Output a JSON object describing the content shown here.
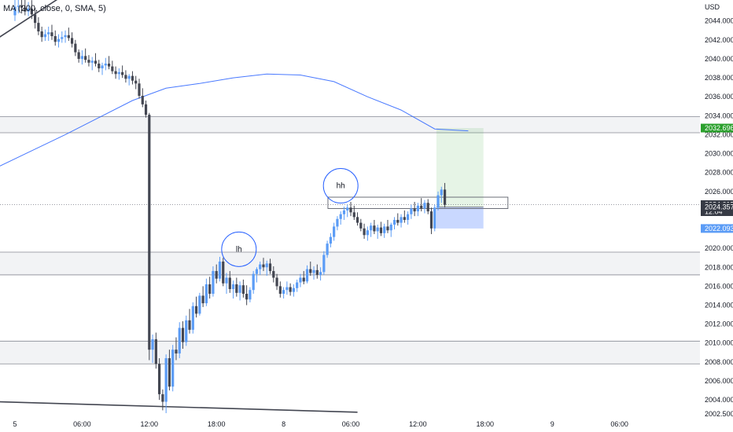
{
  "indicator": {
    "label": "MA (200, close, 0, SMA, 5)"
  },
  "currency": "USD",
  "chart_data": {
    "type": "candlestick",
    "y_range": [
      2002.4,
      2046.3
    ],
    "y_ticks": [
      "2044.000",
      "2042.000",
      "2040.000",
      "2038.000",
      "2036.000",
      "2034.000",
      "2032.000",
      "2030.000",
      "2028.000",
      "2026.000",
      "2024.000",
      "2022.000",
      "2020.000",
      "2018.000",
      "2016.000",
      "2014.000",
      "2012.000",
      "2010.000",
      "2008.000",
      "2006.000",
      "2004.000",
      "2002.500"
    ],
    "x_ticks": [
      "5",
      "06:00",
      "12:00",
      "18:00",
      "8",
      "06:00",
      "12:00",
      "18:00",
      "9",
      "06:00"
    ],
    "x_tick_slots": [
      0,
      20,
      40,
      60,
      80,
      100,
      120,
      140,
      160,
      180
    ],
    "price_tags": [
      {
        "name": "ma-value",
        "value": 2032.696,
        "label": "2032.696",
        "color": "#2ba02d",
        "text_color": "#ffffff"
      },
      {
        "name": "last-price",
        "value": 2024.615,
        "label": "2024.615",
        "sub_label": "12:04",
        "color": "#363a45",
        "text_color": "#ffffff"
      },
      {
        "name": "entry",
        "value": 2024.357,
        "label": "2024.357",
        "color": "#363a45",
        "text_color": "#ffffff"
      },
      {
        "name": "stop",
        "value": 2022.093,
        "label": "2022.093",
        "color": "#5b9cf6",
        "text_color": "#ffffff"
      }
    ],
    "zones": [
      {
        "top": 2033.9,
        "bottom": 2032.2
      },
      {
        "top": 2019.6,
        "bottom": 2017.2
      },
      {
        "top": 2010.2,
        "bottom": 2007.8
      }
    ],
    "position": {
      "entry": 2024.357,
      "target": 2032.696,
      "stop": 2022.093,
      "start_slot": 125.5,
      "end_slot": 139.5
    },
    "annotations": [
      {
        "text": "lh",
        "slot": 66.7,
        "price": 2019.9
      },
      {
        "text": "hh",
        "slot": 97,
        "price": 2026.6
      }
    ],
    "candles": [
      [
        2044.6,
        2046.3,
        2044.0,
        2045.5
      ],
      [
        2045.5,
        2046.3,
        2044.8,
        2045.6
      ],
      [
        2045.6,
        2046.3,
        2044.8,
        2045.4
      ],
      [
        2045.4,
        2046.3,
        2044.6,
        2045.0
      ],
      [
        2045.0,
        2046.0,
        2044.5,
        2045.3
      ],
      [
        2045.3,
        2046.2,
        2044.2,
        2044.7
      ],
      [
        2044.7,
        2045.4,
        2043.2,
        2043.8
      ],
      [
        2043.8,
        2044.4,
        2042.5,
        2042.9
      ],
      [
        2042.9,
        2043.4,
        2041.8,
        2042.3
      ],
      [
        2042.3,
        2043.1,
        2041.9,
        2042.6
      ],
      [
        2042.6,
        2043.4,
        2041.9,
        2042.8
      ],
      [
        2042.8,
        2043.6,
        2042.0,
        2042.4
      ],
      [
        2042.4,
        2043.0,
        2041.4,
        2041.8
      ],
      [
        2041.8,
        2042.6,
        2041.2,
        2042.1
      ],
      [
        2042.1,
        2042.9,
        2041.7,
        2042.3
      ],
      [
        2042.3,
        2043.0,
        2041.7,
        2042.5
      ],
      [
        2042.5,
        2043.3,
        2041.9,
        2042.2
      ],
      [
        2042.2,
        2042.8,
        2041.2,
        2041.6
      ],
      [
        2041.6,
        2042.0,
        2040.3,
        2040.7
      ],
      [
        2040.7,
        2041.0,
        2039.6,
        2040.0
      ],
      [
        2040.0,
        2040.9,
        2039.4,
        2040.3
      ],
      [
        2040.3,
        2041.1,
        2039.6,
        2039.9
      ],
      [
        2039.9,
        2040.4,
        2039.2,
        2039.6
      ],
      [
        2039.6,
        2040.2,
        2038.8,
        2039.8
      ],
      [
        2039.8,
        2040.6,
        2039.2,
        2039.5
      ],
      [
        2039.5,
        2039.9,
        2038.6,
        2039.0
      ],
      [
        2039.0,
        2039.6,
        2038.3,
        2039.3
      ],
      [
        2039.3,
        2040.1,
        2038.8,
        2039.5
      ],
      [
        2039.5,
        2040.3,
        2038.9,
        2039.2
      ],
      [
        2039.2,
        2039.8,
        2038.4,
        2038.7
      ],
      [
        2038.7,
        2039.2,
        2037.9,
        2038.4
      ],
      [
        2038.4,
        2039.0,
        2037.8,
        2038.6
      ],
      [
        2038.6,
        2039.3,
        2038.0,
        2038.3
      ],
      [
        2038.3,
        2038.8,
        2037.5,
        2037.9
      ],
      [
        2037.9,
        2038.4,
        2037.2,
        2038.2
      ],
      [
        2038.2,
        2038.7,
        2037.3,
        2037.7
      ],
      [
        2037.7,
        2038.2,
        2036.8,
        2037.4
      ],
      [
        2037.4,
        2037.9,
        2035.8,
        2036.1
      ],
      [
        2036.1,
        2036.9,
        2034.9,
        2035.2
      ],
      [
        2035.2,
        2035.6,
        2033.8,
        2034.1
      ],
      [
        2034.1,
        2034.3,
        2008.2,
        2009.3
      ],
      [
        2009.3,
        2010.9,
        2007.9,
        2010.4
      ],
      [
        2010.4,
        2011.1,
        2007.3,
        2007.8
      ],
      [
        2007.8,
        2008.4,
        2004.0,
        2004.6
      ],
      [
        2004.6,
        2005.1,
        2002.9,
        2003.8
      ],
      [
        2003.8,
        2008.8,
        2002.6,
        2008.4
      ],
      [
        2008.4,
        2009.3,
        2005.0,
        2005.4
      ],
      [
        2005.4,
        2009.8,
        2004.9,
        2009.3
      ],
      [
        2009.3,
        2010.6,
        2008.2,
        2008.9
      ],
      [
        2008.9,
        2012.2,
        2008.4,
        2011.6
      ],
      [
        2011.6,
        2012.3,
        2009.4,
        2010.1
      ],
      [
        2010.1,
        2012.9,
        2009.7,
        2012.4
      ],
      [
        2012.4,
        2013.6,
        2011.0,
        2011.4
      ],
      [
        2011.4,
        2014.3,
        2011.0,
        2013.9
      ],
      [
        2013.9,
        2014.9,
        2012.7,
        2013.1
      ],
      [
        2013.1,
        2015.3,
        2012.9,
        2015.0
      ],
      [
        2015.0,
        2016.0,
        2013.8,
        2014.2
      ],
      [
        2014.2,
        2016.8,
        2013.9,
        2016.2
      ],
      [
        2016.2,
        2017.0,
        2014.7,
        2015.2
      ],
      [
        2015.2,
        2018.1,
        2014.9,
        2017.6
      ],
      [
        2017.6,
        2018.3,
        2016.3,
        2016.8
      ],
      [
        2016.8,
        2019.1,
        2016.5,
        2018.6
      ],
      [
        2018.6,
        2019.0,
        2016.0,
        2016.3
      ],
      [
        2016.3,
        2017.4,
        2015.2,
        2016.9
      ],
      [
        2016.9,
        2017.6,
        2015.3,
        2015.7
      ],
      [
        2015.7,
        2016.6,
        2014.7,
        2016.2
      ],
      [
        2016.2,
        2016.9,
        2014.9,
        2015.3
      ],
      [
        2015.3,
        2016.5,
        2014.5,
        2016.1
      ],
      [
        2016.1,
        2016.7,
        2014.8,
        2015.2
      ],
      [
        2015.2,
        2016.1,
        2014.0,
        2014.6
      ],
      [
        2014.6,
        2015.9,
        2014.3,
        2015.6
      ],
      [
        2015.6,
        2017.6,
        2015.2,
        2017.3
      ],
      [
        2017.3,
        2018.0,
        2016.4,
        2017.8
      ],
      [
        2017.8,
        2018.6,
        2017.2,
        2018.3
      ],
      [
        2018.3,
        2019.0,
        2017.6,
        2018.0
      ],
      [
        2018.0,
        2018.7,
        2017.1,
        2018.4
      ],
      [
        2018.4,
        2018.9,
        2017.3,
        2017.6
      ],
      [
        2017.6,
        2018.1,
        2016.4,
        2016.9
      ],
      [
        2016.9,
        2017.3,
        2015.6,
        2016.0
      ],
      [
        2016.0,
        2016.5,
        2014.8,
        2015.2
      ],
      [
        2015.2,
        2015.9,
        2014.7,
        2015.6
      ],
      [
        2015.6,
        2016.5,
        2015.1,
        2015.9
      ],
      [
        2015.9,
        2016.3,
        2015.0,
        2015.4
      ],
      [
        2015.4,
        2016.2,
        2014.9,
        2015.8
      ],
      [
        2015.8,
        2016.7,
        2015.4,
        2016.4
      ],
      [
        2016.4,
        2017.3,
        2015.9,
        2016.9
      ],
      [
        2016.9,
        2017.6,
        2016.2,
        2016.5
      ],
      [
        2016.5,
        2018.2,
        2016.3,
        2017.8
      ],
      [
        2017.8,
        2018.6,
        2017.1,
        2017.4
      ],
      [
        2017.4,
        2018.1,
        2016.7,
        2017.7
      ],
      [
        2017.7,
        2018.3,
        2016.8,
        2017.2
      ],
      [
        2017.2,
        2018.0,
        2016.6,
        2017.5
      ],
      [
        2017.5,
        2019.7,
        2017.2,
        2019.3
      ],
      [
        2019.3,
        2020.8,
        2019.0,
        2020.5
      ],
      [
        2020.5,
        2021.6,
        2020.1,
        2021.2
      ],
      [
        2021.2,
        2022.7,
        2020.8,
        2022.3
      ],
      [
        2022.3,
        2023.4,
        2021.9,
        2023.1
      ],
      [
        2023.1,
        2023.9,
        2022.5,
        2023.6
      ],
      [
        2023.6,
        2024.4,
        2023.0,
        2024.0
      ],
      [
        2024.0,
        2024.6,
        2023.3,
        2024.3
      ],
      [
        2024.3,
        2024.9,
        2023.4,
        2023.8
      ],
      [
        2023.8,
        2024.5,
        2023.0,
        2023.3
      ],
      [
        2023.3,
        2023.8,
        2022.4,
        2022.7
      ],
      [
        2022.7,
        2023.1,
        2021.8,
        2022.1
      ],
      [
        2022.1,
        2022.6,
        2021.0,
        2021.4
      ],
      [
        2021.4,
        2022.3,
        2020.8,
        2021.9
      ],
      [
        2021.9,
        2022.7,
        2021.2,
        2022.4
      ],
      [
        2022.4,
        2023.0,
        2021.5,
        2021.8
      ],
      [
        2021.8,
        2022.5,
        2021.0,
        2022.2
      ],
      [
        2022.2,
        2022.8,
        2021.3,
        2021.6
      ],
      [
        2021.6,
        2022.6,
        2021.1,
        2022.3
      ],
      [
        2022.3,
        2023.0,
        2021.6,
        2021.9
      ],
      [
        2021.9,
        2022.7,
        2021.2,
        2022.5
      ],
      [
        2022.5,
        2023.3,
        2022.0,
        2023.0
      ],
      [
        2023.0,
        2023.7,
        2022.4,
        2022.7
      ],
      [
        2022.7,
        2023.6,
        2022.2,
        2023.3
      ],
      [
        2023.3,
        2024.0,
        2022.7,
        2023.0
      ],
      [
        2023.0,
        2023.9,
        2022.5,
        2023.6
      ],
      [
        2023.6,
        2024.6,
        2023.1,
        2024.2
      ],
      [
        2024.2,
        2024.9,
        2023.4,
        2023.9
      ],
      [
        2023.9,
        2024.8,
        2023.4,
        2024.5
      ],
      [
        2024.5,
        2025.3,
        2023.9,
        2024.2
      ],
      [
        2024.2,
        2025.1,
        2023.7,
        2024.8
      ],
      [
        2024.8,
        2025.2,
        2023.6,
        2023.9
      ],
      [
        2023.9,
        2024.3,
        2021.5,
        2022.1
      ],
      [
        2022.1,
        2024.6,
        2021.8,
        2024.3
      ],
      [
        2024.3,
        2026.0,
        2024.0,
        2025.6
      ],
      [
        2025.6,
        2026.5,
        2024.8,
        2026.2
      ],
      [
        2026.2,
        2026.9,
        2024.3,
        2024.6
      ]
    ],
    "ma": [
      [
        -5,
        2028.6
      ],
      [
        5,
        2030.3
      ],
      [
        15,
        2032.0
      ],
      [
        25,
        2033.8
      ],
      [
        35,
        2035.6
      ],
      [
        45,
        2036.9
      ],
      [
        55,
        2037.4
      ],
      [
        65,
        2038.0
      ],
      [
        75,
        2038.4
      ],
      [
        85,
        2038.3
      ],
      [
        95,
        2037.6
      ],
      [
        105,
        2036.0
      ],
      [
        115,
        2034.6
      ],
      [
        125,
        2032.6
      ],
      [
        135,
        2032.4
      ]
    ],
    "trendlines": [
      {
        "from": [
          -5,
          2042.2
        ],
        "to": [
          14,
          2046.6
        ]
      },
      {
        "from": [
          -5,
          2003.8
        ],
        "to": [
          102,
          2002.7
        ]
      }
    ]
  }
}
